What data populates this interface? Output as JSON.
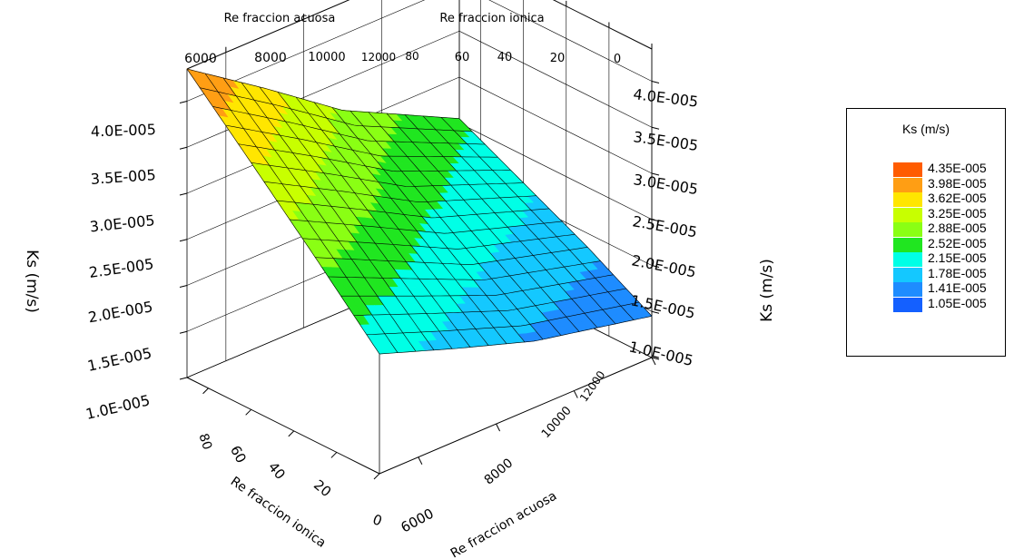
{
  "chart_data": {
    "type": "surface3d",
    "x_axis": {
      "label": "Re fraccion acuosa",
      "range": [
        5000,
        12000
      ],
      "ticks": [
        6000,
        8000,
        10000,
        12000
      ],
      "tick_labels": [
        "6000",
        "8000",
        "10000",
        "12000"
      ]
    },
    "y_axis": {
      "label": "Re fraccion ionica",
      "range": [
        0,
        90
      ],
      "ticks": [
        80,
        60,
        40,
        20,
        0
      ],
      "tick_labels": [
        "80",
        "60",
        "40",
        "20",
        "0"
      ]
    },
    "z_axis": {
      "label": "Ks  (m/s)",
      "range": [
        1e-05,
        4e-05
      ],
      "ticks": [
        1e-05,
        1.5e-05,
        2e-05,
        2.5e-05,
        3e-05,
        3.5e-05,
        4e-05
      ],
      "tick_labels": [
        "1.0E-005",
        "1.5E-005",
        "2.0E-005",
        "2.5E-005",
        "3.0E-005",
        "3.5E-005",
        "4.0E-005"
      ]
    },
    "surface": {
      "x": [
        5000,
        7000,
        9000,
        12000
      ],
      "y": [
        90,
        60,
        30,
        0
      ],
      "z": [
        [
          4.35e-05,
          3.78e-05,
          3.18e-05,
          2.55e-05
        ],
        [
          3.68e-05,
          3.2e-05,
          2.7e-05,
          2.2e-05
        ],
        [
          3e-05,
          2.6e-05,
          2.2e-05,
          1.85e-05
        ],
        [
          2.3e-05,
          2e-05,
          1.72e-05,
          1.45e-05
        ]
      ]
    },
    "colorbar": {
      "title": "Ks (m/s)",
      "levels": [
        "4.35E-005",
        "3.98E-005",
        "3.62E-005",
        "3.25E-005",
        "2.88E-005",
        "2.52E-005",
        "2.15E-005",
        "1.78E-005",
        "1.41E-005",
        "1.05E-005"
      ],
      "level_values": [
        4.35e-05,
        3.98e-05,
        3.62e-05,
        3.25e-05,
        2.88e-05,
        2.52e-05,
        2.15e-05,
        1.78e-05,
        1.41e-05,
        1.05e-05
      ],
      "colors": [
        "#ff5c00",
        "#ff9e14",
        "#ffe600",
        "#c8ff00",
        "#8aff14",
        "#20e620",
        "#00ffe6",
        "#14c8ff",
        "#1e8cff",
        "#1460ff"
      ]
    },
    "grid": true
  }
}
